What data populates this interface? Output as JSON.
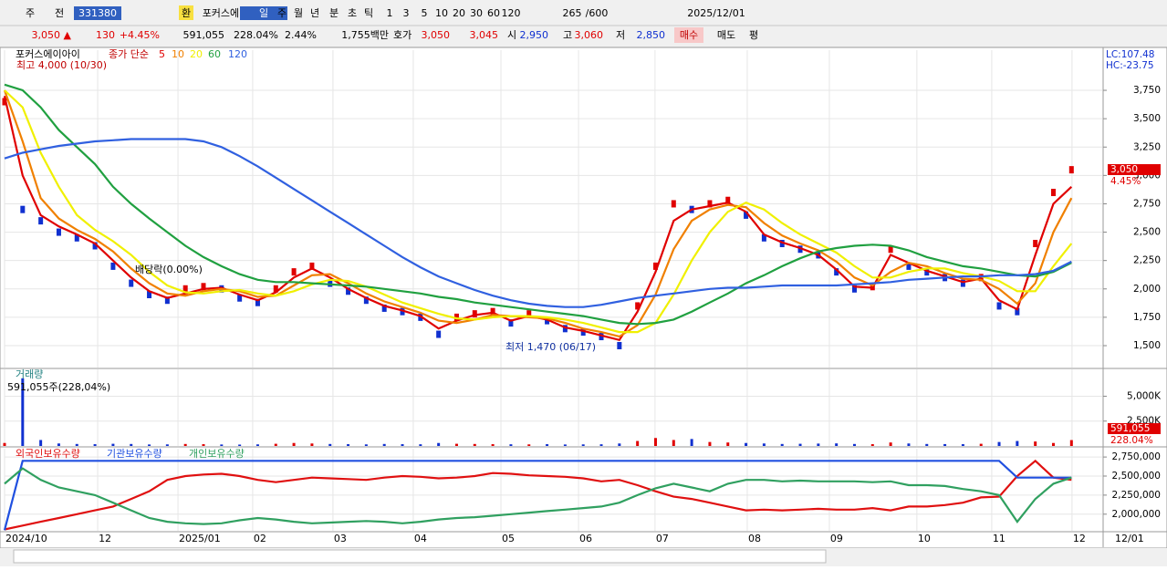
{
  "toolbar": [
    "주",
    "전",
    "331380",
    "환",
    "포커스에이",
    "일",
    "주",
    "월",
    "년",
    "분",
    "초",
    "틱",
    "1",
    "3",
    "5",
    "10",
    "20",
    "30",
    "60",
    "120",
    "265",
    "/600",
    "2025/12/01"
  ],
  "infobar": [
    "3,050 ▲",
    "130",
    "+4.45%",
    "591,055",
    "228.04%",
    "2.44%",
    "1,755백만",
    "호가",
    "3,050",
    "3,045",
    "시",
    "2,950",
    "고",
    "3,060",
    "저",
    "2,850",
    "매수",
    "매도",
    "평"
  ],
  "x_axis": {
    "xlim": [
      0,
      60.7
    ],
    "xticks": [
      {
        "value": 0,
        "label": "2024/10"
      },
      {
        "value": 5.15,
        "label": "12"
      },
      {
        "value": 9.59,
        "label": "2025/01"
      },
      {
        "value": 13.72,
        "label": "02"
      },
      {
        "value": 18.16,
        "label": "03"
      },
      {
        "value": 22.6,
        "label": "04"
      },
      {
        "value": 27.45,
        "label": "05"
      },
      {
        "value": 31.74,
        "label": "06"
      },
      {
        "value": 35.97,
        "label": "07"
      },
      {
        "value": 41.07,
        "label": "08"
      },
      {
        "value": 45.61,
        "label": "09"
      },
      {
        "value": 50.45,
        "label": "10"
      },
      {
        "value": 54.59,
        "label": "11"
      },
      {
        "value": 59.03,
        "label": "12"
      }
    ],
    "end_label": "12/01"
  },
  "chart_data": [
    {
      "type": "line",
      "title": "포커스에이아이",
      "legend_title": "종가 단순",
      "annotations": [
        "최고 4,000 (10/30)",
        "배당락(0.00%)",
        "최저 1,470 (06/17)"
      ],
      "lc": "LC:107.48",
      "hc": "HC:-23.75",
      "price_label": "3,050",
      "change_label": "4.45%",
      "ylim": [
        1307,
        4104
      ],
      "yticks": [
        {
          "value": 1500,
          "label": "1,500"
        },
        {
          "value": 1750,
          "label": "1,750"
        },
        {
          "value": 2000,
          "label": "2,000"
        },
        {
          "value": 2250,
          "label": "2,250"
        },
        {
          "value": 2500,
          "label": "2,500"
        },
        {
          "value": 2750,
          "label": "2,750"
        },
        {
          "value": 3000,
          "label": "3,000"
        },
        {
          "value": 3250,
          "label": "3,250"
        },
        {
          "value": 3500,
          "label": "3,500"
        },
        {
          "value": 3750,
          "label": "3,750"
        }
      ],
      "up_color": "#e00000",
      "down_color": "#1030d0",
      "values": [
        3650,
        2700,
        2600,
        2500,
        2450,
        2380,
        2200,
        2050,
        1950,
        1900,
        2000,
        2020,
        2000,
        1920,
        1880,
        2000,
        2150,
        2200,
        2050,
        1980,
        1900,
        1830,
        1800,
        1750,
        1600,
        1750,
        1780,
        1800,
        1700,
        1780,
        1720,
        1650,
        1620,
        1580,
        1500,
        1850,
        2200,
        2750,
        2700,
        2750,
        2780,
        2650,
        2450,
        2400,
        2350,
        2300,
        2150,
        2000,
        2020,
        2350,
        2200,
        2150,
        2100,
        2050,
        2100,
        1850,
        1800,
        2400,
        2850,
        3050
      ],
      "series": [
        {
          "name": "5",
          "color": "#e00000",
          "values": [
            3700,
            3000,
            2650,
            2550,
            2480,
            2400,
            2250,
            2100,
            1980,
            1920,
            1960,
            2000,
            2010,
            1950,
            1900,
            1970,
            2100,
            2180,
            2100,
            2000,
            1920,
            1850,
            1810,
            1760,
            1650,
            1720,
            1770,
            1790,
            1720,
            1760,
            1730,
            1660,
            1630,
            1590,
            1550,
            1800,
            2150,
            2600,
            2700,
            2730,
            2760,
            2680,
            2480,
            2410,
            2360,
            2300,
            2170,
            2020,
            2010,
            2300,
            2230,
            2160,
            2110,
            2060,
            2090,
            1900,
            1820,
            2300,
            2750,
            2900
          ]
        },
        {
          "name": "10",
          "color": "#f08000",
          "values": [
            3750,
            3300,
            2800,
            2620,
            2520,
            2440,
            2330,
            2180,
            2050,
            1960,
            1940,
            1980,
            2000,
            1980,
            1930,
            1940,
            2030,
            2120,
            2130,
            2050,
            1960,
            1890,
            1840,
            1790,
            1720,
            1700,
            1730,
            1770,
            1760,
            1750,
            1740,
            1700,
            1650,
            1620,
            1580,
            1680,
            1950,
            2350,
            2600,
            2700,
            2740,
            2720,
            2580,
            2470,
            2400,
            2340,
            2240,
            2100,
            2030,
            2150,
            2230,
            2200,
            2140,
            2090,
            2080,
            2000,
            1870,
            2050,
            2500,
            2800
          ]
        },
        {
          "name": "20",
          "color": "#f0f000",
          "values": [
            3750,
            3600,
            3200,
            2900,
            2650,
            2520,
            2420,
            2300,
            2150,
            2030,
            1970,
            1960,
            1980,
            1990,
            1960,
            1940,
            1980,
            2040,
            2080,
            2070,
            2020,
            1950,
            1880,
            1830,
            1780,
            1740,
            1730,
            1750,
            1760,
            1760,
            1750,
            1730,
            1700,
            1660,
            1620,
            1620,
            1700,
            1950,
            2250,
            2500,
            2680,
            2760,
            2700,
            2580,
            2480,
            2400,
            2320,
            2200,
            2100,
            2100,
            2150,
            2180,
            2180,
            2140,
            2110,
            2070,
            1980,
            1980,
            2200,
            2400
          ]
        },
        {
          "name": "60",
          "color": "#20a040",
          "values": [
            3800,
            3750,
            3600,
            3400,
            3250,
            3100,
            2900,
            2750,
            2620,
            2500,
            2380,
            2280,
            2200,
            2130,
            2080,
            2060,
            2060,
            2050,
            2040,
            2030,
            2020,
            2000,
            1980,
            1960,
            1930,
            1910,
            1880,
            1860,
            1840,
            1820,
            1800,
            1780,
            1760,
            1730,
            1700,
            1690,
            1700,
            1730,
            1800,
            1880,
            1960,
            2050,
            2120,
            2200,
            2270,
            2330,
            2360,
            2380,
            2390,
            2380,
            2340,
            2280,
            2240,
            2200,
            2180,
            2150,
            2120,
            2110,
            2150,
            2230
          ]
        },
        {
          "name": "120",
          "color": "#3060e0",
          "values": [
            3150,
            3200,
            3230,
            3260,
            3280,
            3300,
            3310,
            3320,
            3320,
            3320,
            3320,
            3300,
            3250,
            3170,
            3080,
            2980,
            2880,
            2780,
            2680,
            2580,
            2480,
            2380,
            2280,
            2190,
            2110,
            2050,
            1990,
            1940,
            1900,
            1870,
            1850,
            1840,
            1840,
            1860,
            1890,
            1920,
            1940,
            1960,
            1980,
            2000,
            2010,
            2010,
            2020,
            2030,
            2030,
            2030,
            2030,
            2040,
            2050,
            2060,
            2080,
            2090,
            2100,
            2110,
            2110,
            2120,
            2120,
            2130,
            2160,
            2240
          ]
        }
      ]
    },
    {
      "type": "bar",
      "title": "거래량",
      "subtitle": "591,055주(228,04%)",
      "volume_label": "591,055",
      "ratio_label": "228.04%",
      "ylim": [
        0,
        7700
      ],
      "yticks": [
        {
          "value": 2500,
          "label": "2,500K"
        },
        {
          "value": 5000,
          "label": "5,000K"
        }
      ],
      "values": [
        300,
        6800,
        600,
        250,
        200,
        180,
        220,
        200,
        150,
        160,
        200,
        180,
        150,
        140,
        160,
        220,
        300,
        250,
        200,
        180,
        160,
        200,
        180,
        170,
        300,
        220,
        200,
        180,
        170,
        160,
        180,
        150,
        160,
        170,
        250,
        500,
        800,
        600,
        700,
        400,
        350,
        300,
        250,
        200,
        220,
        240,
        260,
        200,
        180,
        350,
        250,
        200,
        190,
        180,
        220,
        400,
        500,
        450,
        300,
        591.055
      ]
    },
    {
      "type": "line",
      "ylim": [
        1782000,
        2859000
      ],
      "yticks": [
        {
          "value": 2000000,
          "label": "2,000,000"
        },
        {
          "value": 2250000,
          "label": "2,250,000"
        },
        {
          "value": 2500000,
          "label": "2,500,000"
        },
        {
          "value": 2750000,
          "label": "2,750,000"
        }
      ],
      "series": [
        {
          "name": "외국인보유수량",
          "color": "#e01010",
          "values": [
            1800000,
            1850000,
            1900000,
            1950000,
            2000000,
            2050000,
            2100000,
            2200000,
            2300000,
            2450000,
            2500000,
            2520000,
            2530000,
            2500000,
            2450000,
            2420000,
            2450000,
            2480000,
            2470000,
            2460000,
            2450000,
            2480000,
            2500000,
            2490000,
            2470000,
            2480000,
            2500000,
            2540000,
            2530000,
            2510000,
            2500000,
            2490000,
            2470000,
            2430000,
            2450000,
            2380000,
            2300000,
            2230000,
            2200000,
            2150000,
            2100000,
            2050000,
            2060000,
            2050000,
            2060000,
            2070000,
            2060000,
            2060000,
            2080000,
            2050000,
            2100000,
            2100000,
            2120000,
            2150000,
            2220000,
            2230000,
            2500000,
            2700000,
            2480000,
            2450000
          ]
        },
        {
          "name": "기관보유수량",
          "color": "#2050e0",
          "values": [
            1790000,
            2700000,
            2700000,
            2700000,
            2700000,
            2700000,
            2700000,
            2700000,
            2700000,
            2700000,
            2700000,
            2700000,
            2700000,
            2700000,
            2700000,
            2700000,
            2700000,
            2700000,
            2700000,
            2700000,
            2700000,
            2700000,
            2700000,
            2700000,
            2700000,
            2700000,
            2700000,
            2700000,
            2700000,
            2700000,
            2700000,
            2700000,
            2700000,
            2700000,
            2700000,
            2700000,
            2700000,
            2700000,
            2700000,
            2700000,
            2700000,
            2700000,
            2700000,
            2700000,
            2700000,
            2700000,
            2700000,
            2700000,
            2700000,
            2700000,
            2700000,
            2700000,
            2700000,
            2700000,
            2700000,
            2700000,
            2480000,
            2480000,
            2480000,
            2480000
          ]
        },
        {
          "name": "개인보유수량",
          "color": "#30a060",
          "values": [
            2400000,
            2600000,
            2450000,
            2350000,
            2300000,
            2250000,
            2150000,
            2050000,
            1950000,
            1900000,
            1880000,
            1870000,
            1880000,
            1920000,
            1950000,
            1930000,
            1900000,
            1880000,
            1890000,
            1900000,
            1910000,
            1900000,
            1880000,
            1900000,
            1930000,
            1950000,
            1960000,
            1980000,
            2000000,
            2020000,
            2040000,
            2060000,
            2080000,
            2100000,
            2150000,
            2250000,
            2340000,
            2400000,
            2350000,
            2300000,
            2400000,
            2450000,
            2450000,
            2430000,
            2440000,
            2430000,
            2430000,
            2430000,
            2420000,
            2430000,
            2380000,
            2380000,
            2370000,
            2330000,
            2300000,
            2250000,
            1900000,
            2200000,
            2400000,
            2480000
          ]
        }
      ]
    }
  ]
}
